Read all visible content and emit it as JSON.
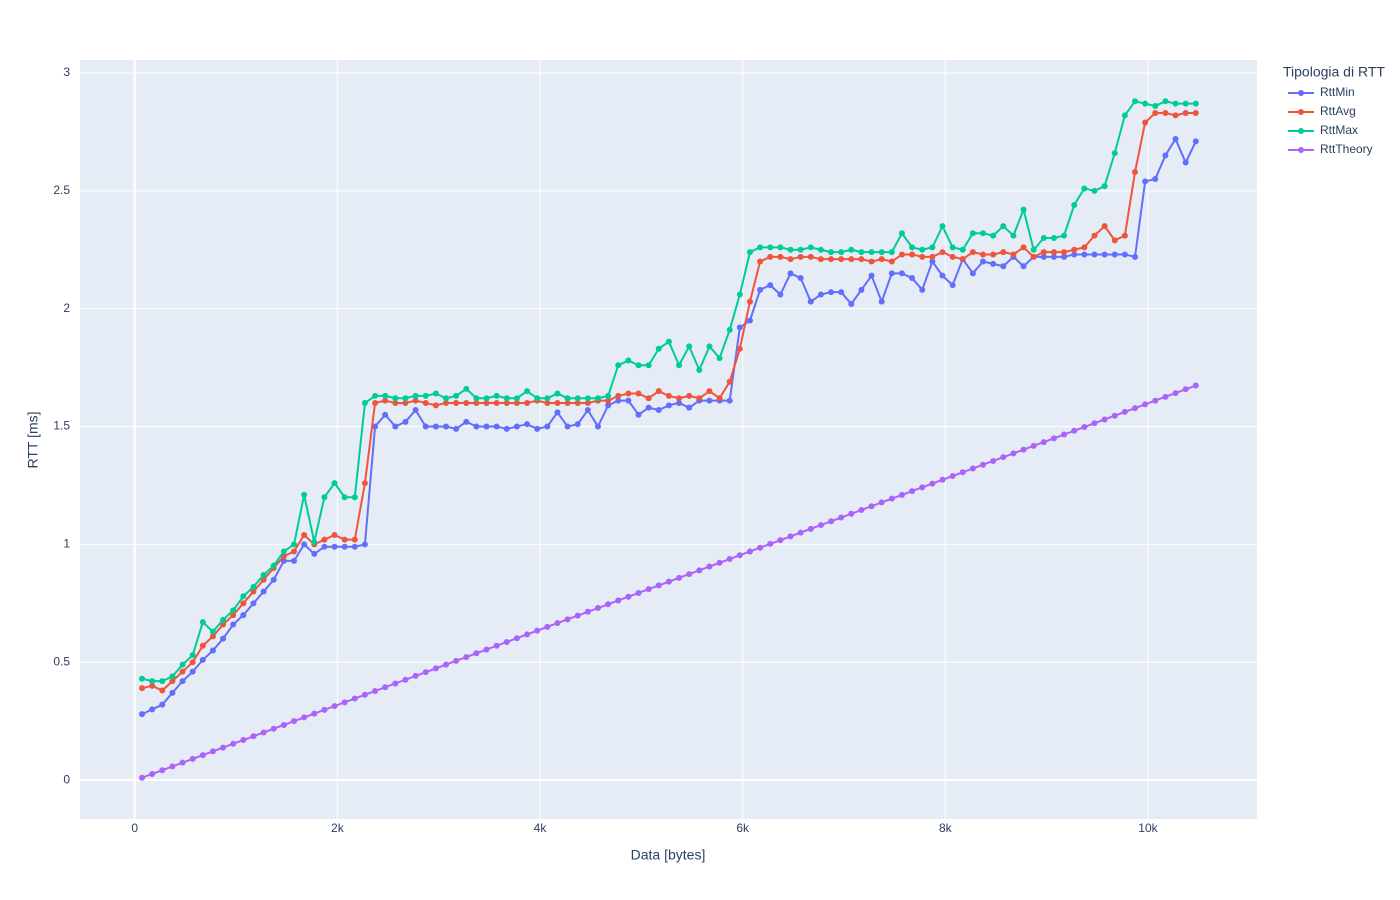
{
  "chart_data": {
    "type": "line",
    "x_label": "Data [bytes]",
    "y_label": "RTT [ms]",
    "legend_title": "Tipologia di RTT",
    "legend_position": "right",
    "grid": true,
    "markers": true,
    "x": [
      72,
      172,
      272,
      372,
      472,
      572,
      672,
      772,
      872,
      972,
      1072,
      1172,
      1272,
      1372,
      1472,
      1572,
      1672,
      1772,
      1872,
      1972,
      2072,
      2172,
      2272,
      2372,
      2472,
      2572,
      2672,
      2772,
      2872,
      2972,
      3072,
      3172,
      3272,
      3372,
      3472,
      3572,
      3672,
      3772,
      3872,
      3972,
      4072,
      4172,
      4272,
      4372,
      4472,
      4572,
      4672,
      4772,
      4872,
      4972,
      5072,
      5172,
      5272,
      5372,
      5472,
      5572,
      5672,
      5772,
      5872,
      5972,
      6072,
      6172,
      6272,
      6372,
      6472,
      6572,
      6672,
      6772,
      6872,
      6972,
      7072,
      7172,
      7272,
      7372,
      7472,
      7572,
      7672,
      7772,
      7872,
      7972,
      8072,
      8172,
      8272,
      8372,
      8472,
      8572,
      8672,
      8772,
      8872,
      8972,
      9072,
      9172,
      9272,
      9372,
      9472,
      9572,
      9672,
      9772,
      9872,
      9972,
      10072,
      10172,
      10272,
      10372,
      10472
    ],
    "xlim": [
      -540,
      11076
    ],
    "xticks": [
      0,
      {
        "value": 2000,
        "label": "2k"
      },
      {
        "value": 4000,
        "label": "4k"
      },
      {
        "value": 6000,
        "label": "6k"
      },
      {
        "value": 8000,
        "label": "8k"
      },
      {
        "value": 10000,
        "label": "10k"
      }
    ],
    "ylim": [
      -0.165,
      3.055
    ],
    "yticks": [
      0,
      0.5,
      1,
      1.5,
      2,
      2.5,
      3
    ],
    "series": [
      {
        "name": "RttMin",
        "color": "#636efa",
        "values": [
          0.28,
          0.3,
          0.32,
          0.37,
          0.42,
          0.46,
          0.51,
          0.55,
          0.6,
          0.66,
          0.7,
          0.75,
          0.8,
          0.85,
          0.93,
          0.93,
          1.0,
          0.96,
          0.99,
          0.99,
          0.99,
          0.99,
          1.0,
          1.5,
          1.55,
          1.5,
          1.52,
          1.57,
          1.5,
          1.5,
          1.5,
          1.49,
          1.52,
          1.5,
          1.5,
          1.5,
          1.49,
          1.5,
          1.51,
          1.49,
          1.5,
          1.56,
          1.5,
          1.51,
          1.57,
          1.5,
          1.59,
          1.61,
          1.61,
          1.55,
          1.58,
          1.57,
          1.59,
          1.6,
          1.58,
          1.61,
          1.61,
          1.61,
          1.61,
          1.92,
          1.95,
          2.08,
          2.1,
          2.06,
          2.15,
          2.13,
          2.03,
          2.06,
          2.07,
          2.07,
          2.02,
          2.08,
          2.14,
          2.03,
          2.15,
          2.15,
          2.13,
          2.08,
          2.2,
          2.14,
          2.1,
          2.21,
          2.15,
          2.2,
          2.19,
          2.18,
          2.22,
          2.18,
          2.22,
          2.22,
          2.22,
          2.22,
          2.23,
          2.23,
          2.23,
          2.23,
          2.23,
          2.23,
          2.22,
          2.54,
          2.55,
          2.65,
          2.72,
          2.62,
          2.71
        ]
      },
      {
        "name": "RttAvg",
        "color": "#ef553b",
        "values": [
          0.39,
          0.4,
          0.38,
          0.42,
          0.46,
          0.5,
          0.57,
          0.61,
          0.66,
          0.7,
          0.75,
          0.8,
          0.85,
          0.9,
          0.95,
          0.97,
          1.04,
          1.0,
          1.02,
          1.04,
          1.02,
          1.02,
          1.26,
          1.6,
          1.61,
          1.6,
          1.6,
          1.61,
          1.6,
          1.59,
          1.6,
          1.6,
          1.6,
          1.6,
          1.6,
          1.6,
          1.6,
          1.6,
          1.6,
          1.61,
          1.6,
          1.6,
          1.6,
          1.6,
          1.6,
          1.61,
          1.61,
          1.63,
          1.64,
          1.64,
          1.62,
          1.65,
          1.63,
          1.62,
          1.63,
          1.62,
          1.65,
          1.62,
          1.69,
          1.83,
          2.03,
          2.2,
          2.22,
          2.22,
          2.21,
          2.22,
          2.22,
          2.21,
          2.21,
          2.21,
          2.21,
          2.21,
          2.2,
          2.21,
          2.2,
          2.23,
          2.23,
          2.22,
          2.22,
          2.24,
          2.22,
          2.21,
          2.24,
          2.23,
          2.23,
          2.24,
          2.23,
          2.26,
          2.22,
          2.24,
          2.24,
          2.24,
          2.25,
          2.26,
          2.31,
          2.35,
          2.29,
          2.31,
          2.58,
          2.79,
          2.83,
          2.83,
          2.82,
          2.83,
          2.83
        ]
      },
      {
        "name": "RttMax",
        "color": "#00cc96",
        "values": [
          0.43,
          0.42,
          0.42,
          0.44,
          0.49,
          0.53,
          0.67,
          0.63,
          0.68,
          0.72,
          0.78,
          0.82,
          0.87,
          0.91,
          0.97,
          1.0,
          1.21,
          1.01,
          1.2,
          1.26,
          1.2,
          1.2,
          1.6,
          1.63,
          1.63,
          1.62,
          1.62,
          1.63,
          1.63,
          1.64,
          1.62,
          1.63,
          1.66,
          1.62,
          1.62,
          1.63,
          1.62,
          1.62,
          1.65,
          1.62,
          1.62,
          1.64,
          1.62,
          1.62,
          1.62,
          1.62,
          1.63,
          1.76,
          1.78,
          1.76,
          1.76,
          1.83,
          1.86,
          1.76,
          1.84,
          1.74,
          1.84,
          1.79,
          1.91,
          2.06,
          2.24,
          2.26,
          2.26,
          2.26,
          2.25,
          2.25,
          2.26,
          2.25,
          2.24,
          2.24,
          2.25,
          2.24,
          2.24,
          2.24,
          2.24,
          2.32,
          2.26,
          2.25,
          2.26,
          2.35,
          2.26,
          2.25,
          2.32,
          2.32,
          2.31,
          2.35,
          2.31,
          2.42,
          2.25,
          2.3,
          2.3,
          2.31,
          2.44,
          2.51,
          2.5,
          2.52,
          2.66,
          2.82,
          2.88,
          2.87,
          2.86,
          2.88,
          2.87,
          2.87,
          2.87
        ]
      },
      {
        "name": "RttTheory",
        "color": "#ab63fa",
        "values": [
          0.01,
          0.026,
          0.042,
          0.058,
          0.074,
          0.09,
          0.106,
          0.122,
          0.138,
          0.154,
          0.17,
          0.186,
          0.202,
          0.218,
          0.234,
          0.25,
          0.266,
          0.282,
          0.298,
          0.314,
          0.33,
          0.346,
          0.362,
          0.378,
          0.394,
          0.41,
          0.426,
          0.442,
          0.458,
          0.474,
          0.49,
          0.506,
          0.522,
          0.538,
          0.554,
          0.57,
          0.586,
          0.602,
          0.618,
          0.634,
          0.65,
          0.666,
          0.682,
          0.698,
          0.714,
          0.73,
          0.746,
          0.762,
          0.778,
          0.794,
          0.81,
          0.826,
          0.842,
          0.858,
          0.874,
          0.89,
          0.906,
          0.922,
          0.938,
          0.954,
          0.97,
          0.986,
          1.002,
          1.018,
          1.034,
          1.05,
          1.066,
          1.082,
          1.098,
          1.114,
          1.13,
          1.146,
          1.162,
          1.178,
          1.194,
          1.21,
          1.226,
          1.242,
          1.258,
          1.274,
          1.29,
          1.306,
          1.322,
          1.338,
          1.354,
          1.37,
          1.386,
          1.402,
          1.418,
          1.434,
          1.45,
          1.466,
          1.482,
          1.498,
          1.514,
          1.53,
          1.546,
          1.562,
          1.578,
          1.594,
          1.61,
          1.626,
          1.642,
          1.658,
          1.674
        ]
      }
    ]
  }
}
